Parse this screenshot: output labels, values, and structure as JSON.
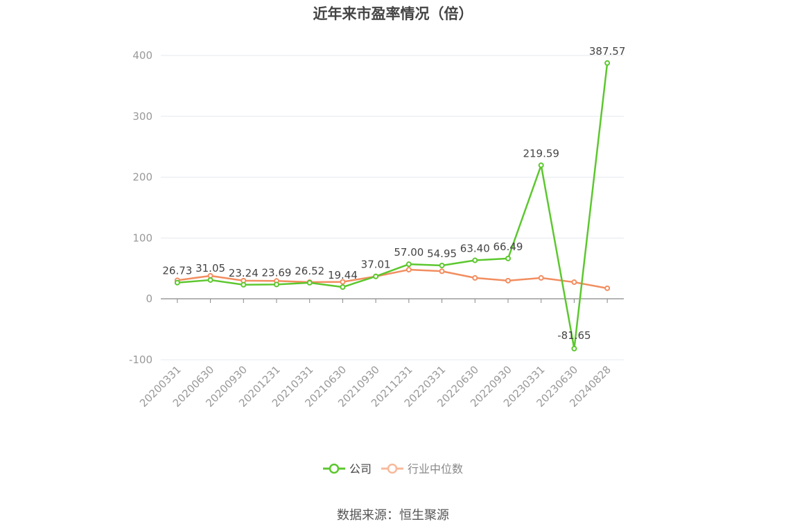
{
  "title": "近年来市盈率情况（倍）",
  "source": "数据来源：恒生聚源",
  "colors": {
    "company": "#5cc72e",
    "industry": "#f28d5f",
    "industry_legend": "#f7b99c"
  },
  "chart_data": {
    "type": "line",
    "title": "近年来市盈率情况（倍）",
    "categories": [
      "20200331",
      "20200630",
      "20200930",
      "20201231",
      "20210331",
      "20210630",
      "20210930",
      "20211231",
      "20220331",
      "20220630",
      "20220930",
      "20230331",
      "20230630",
      "20240828"
    ],
    "ylim": [
      -100,
      400
    ],
    "yticks": [
      -100,
      0,
      100,
      200,
      300,
      400
    ],
    "grid": true,
    "legend_position": "bottom",
    "series": [
      {
        "name": "公司",
        "values": [
          26.73,
          31.05,
          23.24,
          23.69,
          26.52,
          19.44,
          37.01,
          57.0,
          54.95,
          63.4,
          66.49,
          219.59,
          -81.65,
          387.57
        ],
        "labels": [
          "26.73",
          "31.05",
          "23.24",
          "23.69",
          "26.52",
          "19.44",
          "37.01",
          "57.00",
          "54.95",
          "63.40",
          "66.49",
          "219.59",
          "-81.65",
          "387.57"
        ]
      },
      {
        "name": "行业中位数",
        "values": [
          30.5,
          38.0,
          30.0,
          29.5,
          27.5,
          28.0,
          37.0,
          48.0,
          45.5,
          34.5,
          30.0,
          34.5,
          27.5,
          17.5
        ]
      }
    ]
  }
}
